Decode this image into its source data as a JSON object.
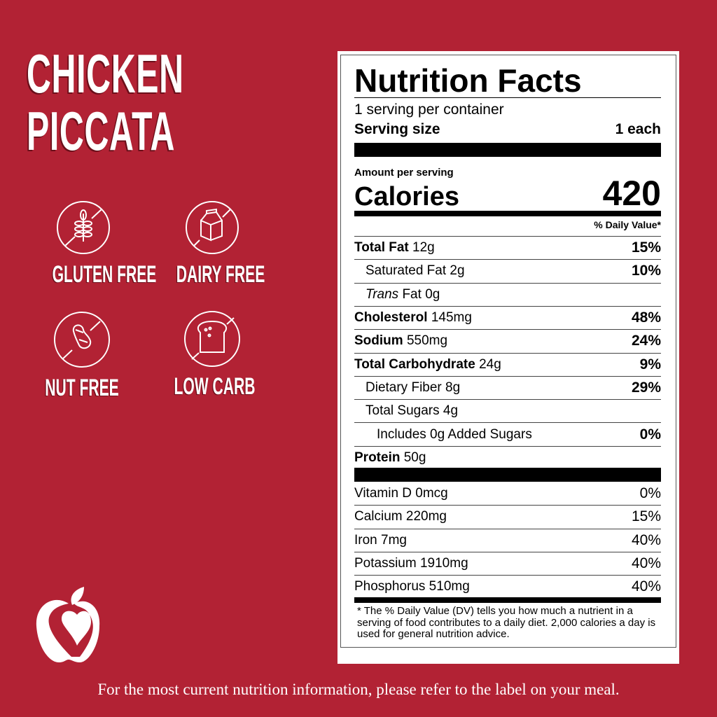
{
  "product": {
    "title_line1": "CHICKEN",
    "title_line2": "PICCATA"
  },
  "badges": [
    {
      "label": "GLUTEN FREE",
      "icon": "wheat-crossed-icon"
    },
    {
      "label": "DAIRY FREE",
      "icon": "milk-carton-crossed-icon"
    },
    {
      "label": "NUT FREE",
      "icon": "peanut-crossed-icon"
    },
    {
      "label": "LOW CARB",
      "icon": "bread-crossed-icon"
    }
  ],
  "label": {
    "heading": "Nutrition Facts",
    "servings": "1 serving per container",
    "serving_size_label": "Serving size",
    "serving_size_value": "1 each",
    "amount_per_serving": "Amount per serving",
    "calories_label": "Calories",
    "calories_value": "420",
    "dv_header": "% Daily Value*",
    "nutrients": [
      {
        "name": "Total Fat",
        "amount": "12g",
        "dv": "15%",
        "bold": true,
        "indent": 0
      },
      {
        "name": "Saturated Fat",
        "amount": "2g",
        "dv": "10%",
        "bold": false,
        "indent": 1
      },
      {
        "name": "Trans",
        "name2": "Fat",
        "amount": "0g",
        "dv": "",
        "bold": false,
        "indent": 1
      },
      {
        "name": "Cholesterol",
        "amount": "145mg",
        "dv": "48%",
        "bold": true,
        "indent": 0
      },
      {
        "name": "Sodium",
        "amount": "550mg",
        "dv": "24%",
        "bold": true,
        "indent": 0
      },
      {
        "name": "Total Carbohydrate",
        "amount": "24g",
        "dv": "9%",
        "bold": true,
        "indent": 0
      },
      {
        "name": "Dietary Fiber",
        "amount": "8g",
        "dv": "29%",
        "bold": false,
        "indent": 1
      },
      {
        "name": "Total Sugars",
        "amount": "4g",
        "dv": "",
        "bold": false,
        "indent": 1
      },
      {
        "name": "Includes 0g Added Sugars",
        "amount": "",
        "dv": "0%",
        "bold": false,
        "indent": 2
      },
      {
        "name": "Protein",
        "amount": "50g",
        "dv": "",
        "bold": true,
        "indent": 0
      }
    ],
    "vitamins": [
      {
        "name": "Vitamin D 0mcg",
        "dv": "0%"
      },
      {
        "name": "Calcium 220mg",
        "dv": "15%"
      },
      {
        "name": "Iron 7mg",
        "dv": "40%"
      },
      {
        "name": "Potassium 1910mg",
        "dv": "40%"
      },
      {
        "name": "Phosphorus 510mg",
        "dv": "40%"
      }
    ],
    "footnote": "* The % Daily Value (DV) tells you how much a nutrient in a serving of food contributes to a daily diet. 2,000 calories a day is used for general nutrition advice."
  },
  "footer": "For the most current nutrition information, please refer to the label on your meal.",
  "colors": {
    "background": "#b22234",
    "shadow": "#6b0f1a"
  }
}
